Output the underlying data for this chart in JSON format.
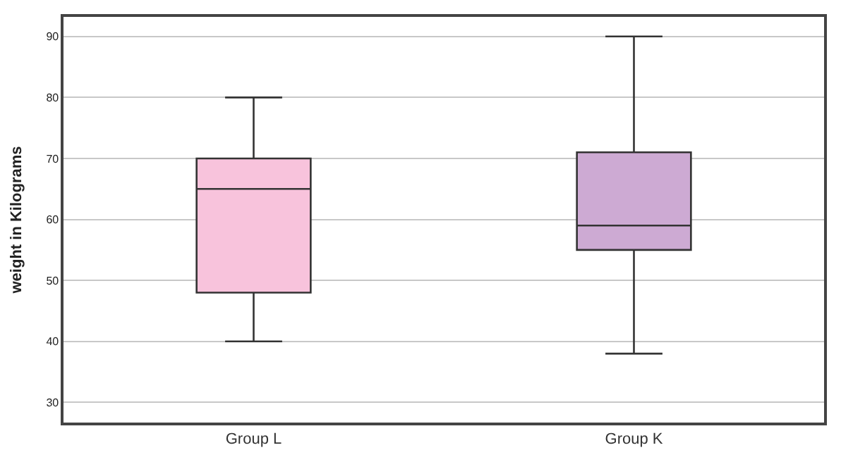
{
  "chart_data": {
    "type": "box",
    "ylabel": "weight in Kilograms",
    "categories": [
      "Group L",
      "Group K"
    ],
    "colors": [
      "#f8c3dc",
      "#cdaad3"
    ],
    "boxes": [
      {
        "low": 40,
        "q1": 48,
        "median": 65,
        "q3": 70,
        "high": 80
      },
      {
        "low": 38,
        "q1": 55,
        "median": 59,
        "q3": 71,
        "high": 90
      }
    ],
    "ylim": [
      26.7,
      93.2
    ],
    "yticks": [
      30,
      40,
      50,
      60,
      70,
      80,
      90
    ],
    "grid": "y",
    "legend": false
  }
}
